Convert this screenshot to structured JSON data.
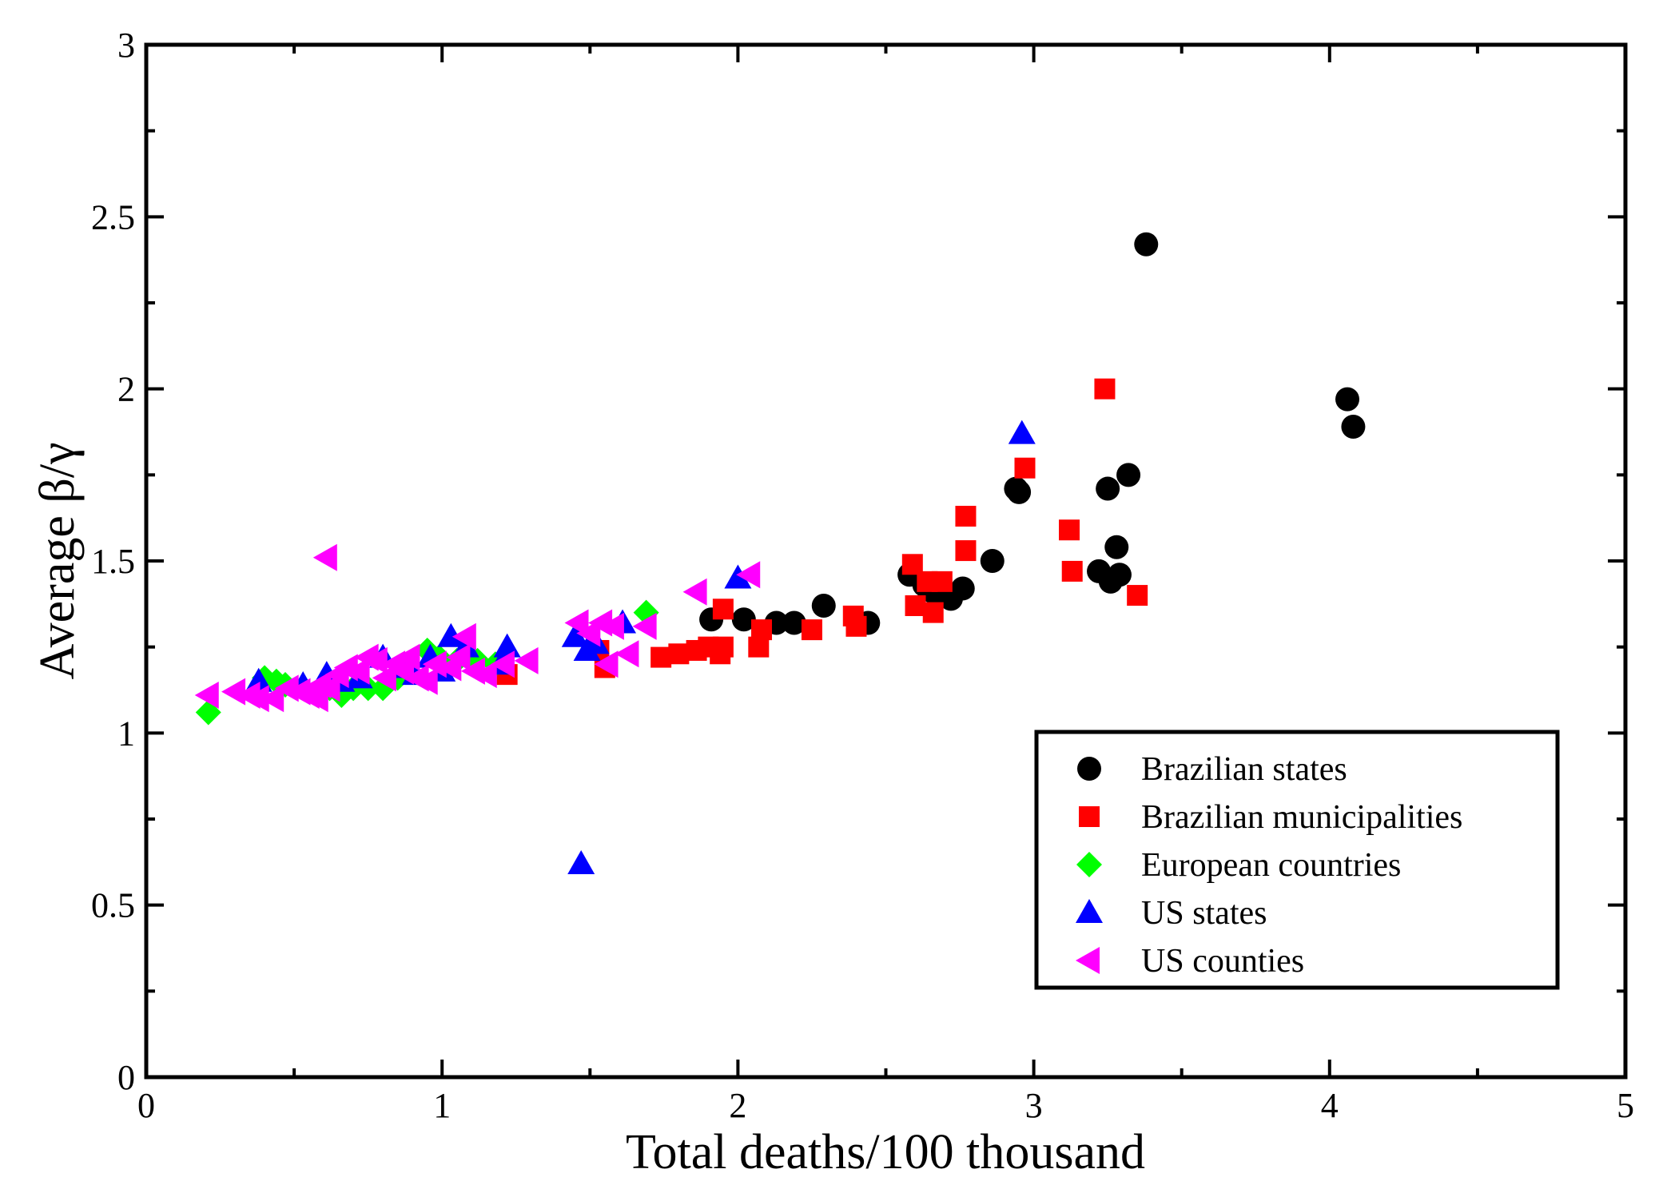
{
  "chart_data": {
    "type": "scatter",
    "title": "",
    "xlabel": "Total deaths/100 thousand",
    "ylabel": "Average β/γ",
    "xlim": [
      0,
      5
    ],
    "ylim": [
      0,
      3
    ],
    "x_ticks": [
      {
        "value": 0,
        "label": "0"
      },
      {
        "value": 1,
        "label": "1"
      },
      {
        "value": 2,
        "label": "2"
      },
      {
        "value": 3,
        "label": "3"
      },
      {
        "value": 4,
        "label": "4"
      },
      {
        "value": 5,
        "label": "5"
      }
    ],
    "y_ticks": [
      {
        "value": 0,
        "label": "0"
      },
      {
        "value": 0.5,
        "label": "0.5"
      },
      {
        "value": 1,
        "label": "1"
      },
      {
        "value": 1.5,
        "label": "1.5"
      },
      {
        "value": 2,
        "label": "2"
      },
      {
        "value": 2.5,
        "label": "2.5"
      },
      {
        "value": 3,
        "label": "3"
      }
    ],
    "legend_position": "bottom-right",
    "grid": false,
    "series": [
      {
        "name": "Brazilian states",
        "marker": "circle",
        "color": "#000000",
        "points": [
          [
            1.91,
            1.33
          ],
          [
            2.02,
            1.33
          ],
          [
            2.13,
            1.32
          ],
          [
            2.19,
            1.32
          ],
          [
            2.29,
            1.37
          ],
          [
            2.44,
            1.32
          ],
          [
            2.58,
            1.46
          ],
          [
            2.63,
            1.43
          ],
          [
            2.66,
            1.41
          ],
          [
            2.7,
            1.4
          ],
          [
            2.72,
            1.39
          ],
          [
            2.76,
            1.42
          ],
          [
            2.86,
            1.5
          ],
          [
            2.94,
            1.71
          ],
          [
            2.95,
            1.7
          ],
          [
            3.22,
            1.47
          ],
          [
            3.25,
            1.71
          ],
          [
            3.26,
            1.44
          ],
          [
            3.28,
            1.54
          ],
          [
            3.29,
            1.46
          ],
          [
            3.32,
            1.75
          ],
          [
            3.38,
            2.42
          ],
          [
            4.06,
            1.97
          ],
          [
            4.08,
            1.89
          ]
        ]
      },
      {
        "name": "Brazilian municipalities",
        "marker": "square",
        "color": "#ff0000",
        "points": [
          [
            1.22,
            1.17
          ],
          [
            1.53,
            1.24
          ],
          [
            1.55,
            1.19
          ],
          [
            1.74,
            1.22
          ],
          [
            1.8,
            1.23
          ],
          [
            1.86,
            1.24
          ],
          [
            1.9,
            1.25
          ],
          [
            1.94,
            1.23
          ],
          [
            1.95,
            1.25
          ],
          [
            1.95,
            1.36
          ],
          [
            2.07,
            1.25
          ],
          [
            2.08,
            1.3
          ],
          [
            2.25,
            1.3
          ],
          [
            2.39,
            1.34
          ],
          [
            2.4,
            1.31
          ],
          [
            2.59,
            1.49
          ],
          [
            2.6,
            1.37
          ],
          [
            2.64,
            1.44
          ],
          [
            2.66,
            1.35
          ],
          [
            2.69,
            1.44
          ],
          [
            2.77,
            1.53
          ],
          [
            2.77,
            1.63
          ],
          [
            2.97,
            1.77
          ],
          [
            3.12,
            1.59
          ],
          [
            3.13,
            1.47
          ],
          [
            3.24,
            2.0
          ],
          [
            3.35,
            1.4
          ]
        ]
      },
      {
        "name": "European countries",
        "marker": "diamond",
        "color": "#00ff00",
        "points": [
          [
            0.21,
            1.06
          ],
          [
            0.4,
            1.16
          ],
          [
            0.44,
            1.15
          ],
          [
            0.47,
            1.14
          ],
          [
            0.62,
            1.13
          ],
          [
            0.66,
            1.11
          ],
          [
            0.7,
            1.13
          ],
          [
            0.75,
            1.13
          ],
          [
            0.8,
            1.13
          ],
          [
            0.85,
            1.16
          ],
          [
            0.95,
            1.24
          ],
          [
            0.99,
            1.22
          ],
          [
            1.05,
            1.21
          ],
          [
            1.12,
            1.21
          ],
          [
            1.18,
            1.2
          ],
          [
            1.69,
            1.35
          ]
        ]
      },
      {
        "name": "US states",
        "marker": "triangle-up",
        "color": "#0000ff",
        "points": [
          [
            0.38,
            1.15
          ],
          [
            0.53,
            1.14
          ],
          [
            0.61,
            1.17
          ],
          [
            0.66,
            1.15
          ],
          [
            0.72,
            1.16
          ],
          [
            0.8,
            1.22
          ],
          [
            0.87,
            1.19
          ],
          [
            0.91,
            1.17
          ],
          [
            0.96,
            1.22
          ],
          [
            1.0,
            1.18
          ],
          [
            1.03,
            1.28
          ],
          [
            1.08,
            1.25
          ],
          [
            1.2,
            1.2
          ],
          [
            1.22,
            1.25
          ],
          [
            1.45,
            1.28
          ],
          [
            1.47,
            0.62
          ],
          [
            1.49,
            1.24
          ],
          [
            1.52,
            1.26
          ],
          [
            1.61,
            1.32
          ],
          [
            2.0,
            1.45
          ],
          [
            2.96,
            1.87
          ]
        ]
      },
      {
        "name": "US counties",
        "marker": "triangle-left",
        "color": "#ff00ff",
        "points": [
          [
            0.21,
            1.11
          ],
          [
            0.3,
            1.12
          ],
          [
            0.35,
            1.11
          ],
          [
            0.38,
            1.1
          ],
          [
            0.43,
            1.1
          ],
          [
            0.48,
            1.13
          ],
          [
            0.52,
            1.12
          ],
          [
            0.55,
            1.11
          ],
          [
            0.58,
            1.1
          ],
          [
            0.59,
            1.14
          ],
          [
            0.61,
            1.51
          ],
          [
            0.62,
            1.13
          ],
          [
            0.65,
            1.17
          ],
          [
            0.68,
            1.19
          ],
          [
            0.72,
            1.18
          ],
          [
            0.75,
            1.22
          ],
          [
            0.78,
            1.21
          ],
          [
            0.81,
            1.16
          ],
          [
            0.84,
            1.2
          ],
          [
            0.87,
            1.18
          ],
          [
            0.89,
            1.22
          ],
          [
            0.92,
            1.16
          ],
          [
            0.95,
            1.15
          ],
          [
            0.98,
            1.2
          ],
          [
            1.03,
            1.19
          ],
          [
            1.06,
            1.22
          ],
          [
            1.08,
            1.28
          ],
          [
            1.11,
            1.18
          ],
          [
            1.15,
            1.17
          ],
          [
            1.21,
            1.2
          ],
          [
            1.29,
            1.21
          ],
          [
            1.46,
            1.32
          ],
          [
            1.5,
            1.29
          ],
          [
            1.54,
            1.32
          ],
          [
            1.56,
            1.2
          ],
          [
            1.58,
            1.31
          ],
          [
            1.63,
            1.23
          ],
          [
            1.69,
            1.31
          ],
          [
            1.86,
            1.41
          ],
          [
            2.04,
            1.46
          ]
        ]
      }
    ]
  }
}
